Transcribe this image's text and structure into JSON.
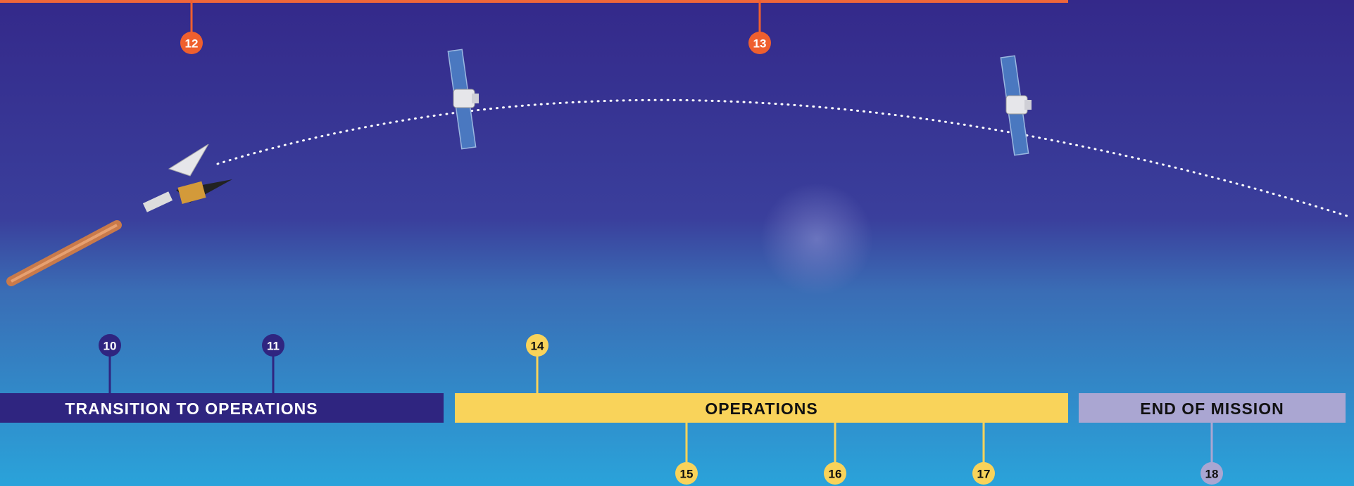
{
  "phases": [
    {
      "label": "TRANSITION TO OPERATIONS"
    },
    {
      "label": "OPERATIONS"
    },
    {
      "label": "END OF MISSION"
    }
  ],
  "markers": [
    {
      "label": "10"
    },
    {
      "label": "11"
    },
    {
      "label": "12"
    },
    {
      "label": "13"
    },
    {
      "label": "14"
    },
    {
      "label": "15"
    },
    {
      "label": "16"
    },
    {
      "label": "17"
    },
    {
      "label": "18"
    }
  ]
}
